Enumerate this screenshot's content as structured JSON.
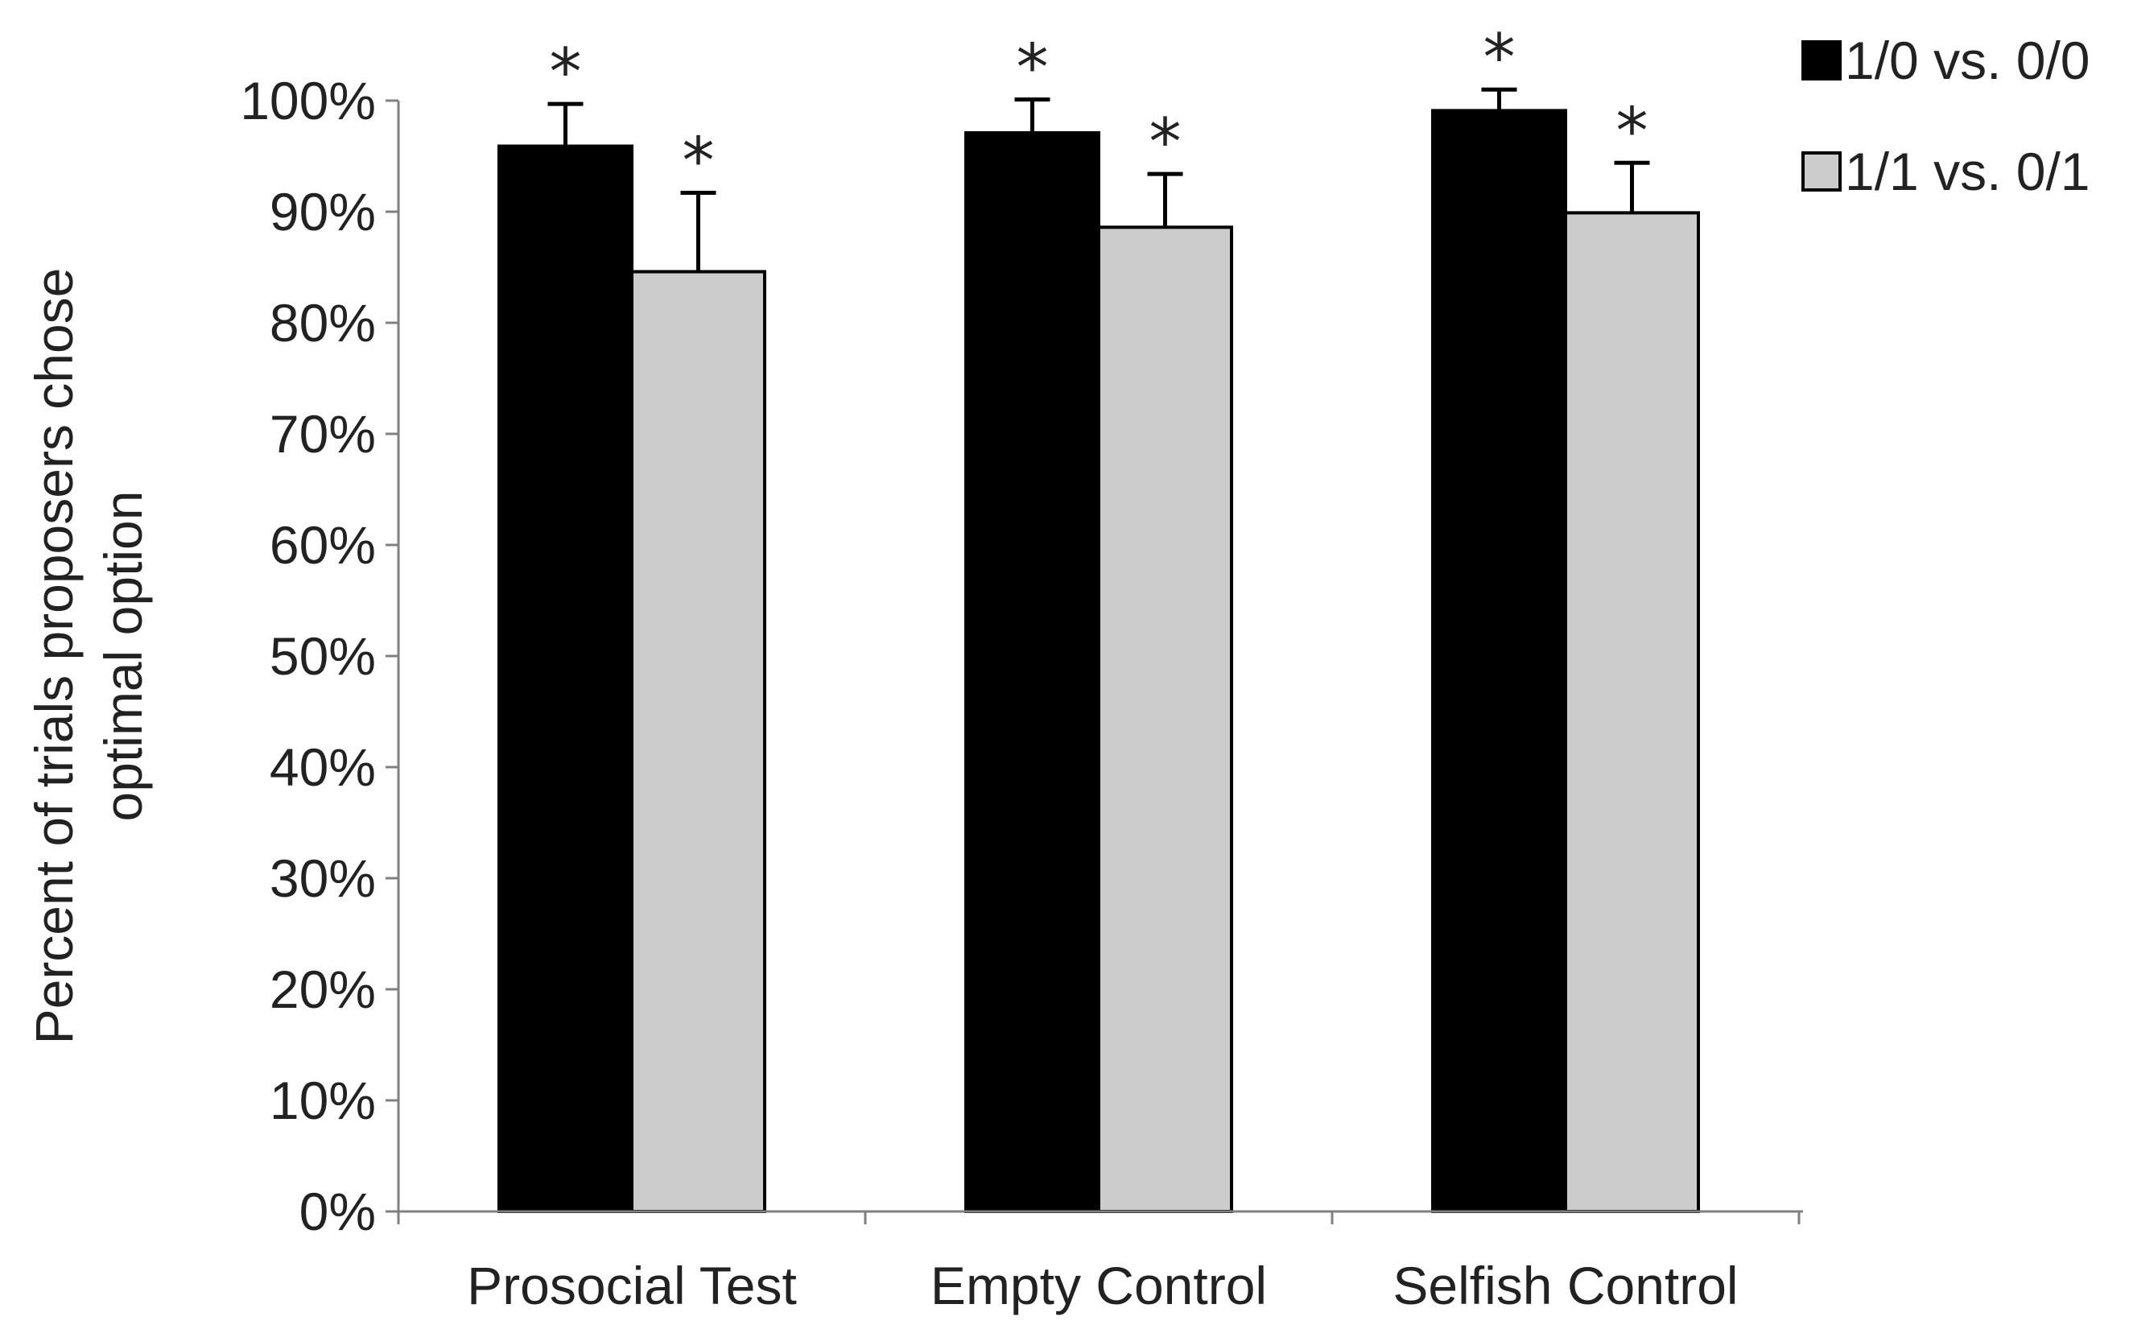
{
  "chart_data": {
    "type": "bar",
    "categories": [
      "Prosocial Test",
      "Empty Control",
      "Selfish Control"
    ],
    "series": [
      {
        "name": "1/0 vs. 0/0",
        "color": "#000000",
        "values": [
          95.9,
          97.1,
          99.1
        ],
        "error": [
          3.8,
          3.0,
          1.9
        ],
        "significance": [
          "*",
          "*",
          "*"
        ]
      },
      {
        "name": "1/1 vs. 0/1",
        "color": "#cccccc",
        "values": [
          84.6,
          88.6,
          89.9
        ],
        "error": [
          7.1,
          4.8,
          4.5
        ],
        "significance": [
          "*",
          "*",
          "*"
        ]
      }
    ],
    "ylabel": "Percent of trials proposers chose optimal option",
    "ylabel_lines": [
      "Percent of trials proposers chose",
      "optimal option"
    ],
    "xlabel": "",
    "ylim": [
      0,
      100
    ],
    "yticks": [
      0,
      10,
      20,
      30,
      40,
      50,
      60,
      70,
      80,
      90,
      100
    ],
    "ytick_labels": [
      "0%",
      "10%",
      "20%",
      "30%",
      "40%",
      "50%",
      "60%",
      "70%",
      "80%",
      "90%",
      "100%"
    ],
    "grid": false,
    "legend_position": "top-right"
  }
}
